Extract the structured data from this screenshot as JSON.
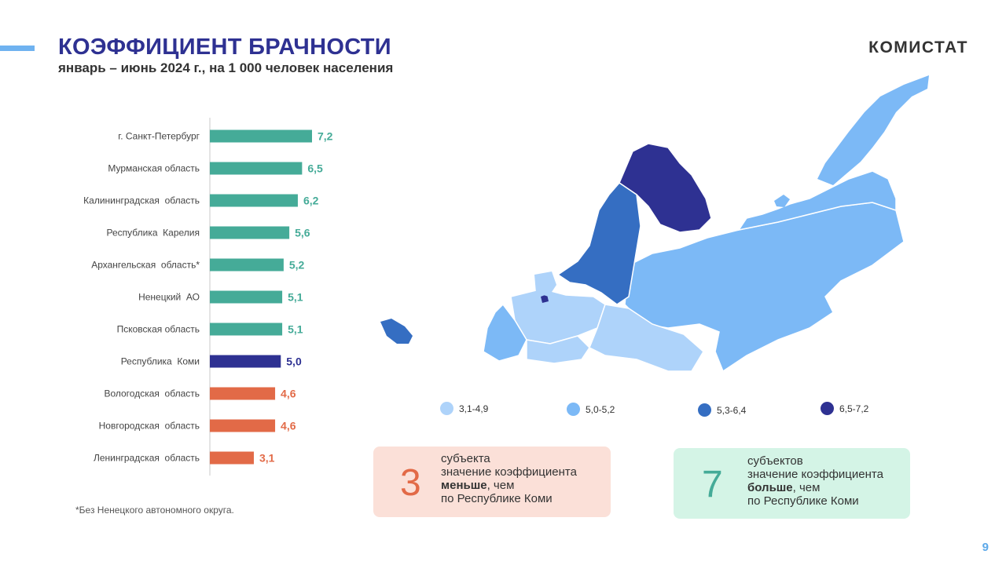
{
  "header": {
    "title": "КОЭФФИЦИЕНТ БРАЧНОСТИ",
    "subtitle": "январь – июнь 2024 г., на 1 000 человек населения",
    "brand": "КОМИСТАТ",
    "page_number": "9",
    "accent_color": "#6fb2f0",
    "title_color": "#2e3192"
  },
  "chart_data": {
    "type": "bar",
    "orientation": "horizontal",
    "categories": [
      "г. Санкт-Петербург",
      "Мурманская область",
      "Калининградская  область",
      "Республика  Карелия",
      "Архангельская  область*",
      "Ненецкий  АО",
      "Псковская область",
      "Республика  Коми",
      "Вологодская  область",
      "Новгородская  область",
      "Ленинградская  область"
    ],
    "values": [
      7.2,
      6.5,
      6.2,
      5.6,
      5.2,
      5.1,
      5.1,
      5.0,
      4.6,
      4.6,
      3.1
    ],
    "value_labels": [
      "7,2",
      "6,5",
      "6,2",
      "5,6",
      "5,2",
      "5,1",
      "5,1",
      "5,0",
      "4,6",
      "4,6",
      "3,1"
    ],
    "groups": [
      "higher",
      "higher",
      "higher",
      "higher",
      "higher",
      "higher",
      "higher",
      "komi",
      "lower",
      "lower",
      "lower"
    ],
    "colors": {
      "higher": "#45ab98",
      "komi": "#2e3192",
      "lower": "#e26a47"
    },
    "xlim": [
      0,
      7.2
    ]
  },
  "footnote": "*Без Ненецкого  автономного  округа.",
  "map": {
    "legend": [
      {
        "label": "3,1-4,9",
        "color": "#aed3fa"
      },
      {
        "label": "5,0-5,2",
        "color": "#7cb9f6"
      },
      {
        "label": "5,3-6,4",
        "color": "#356ec2"
      },
      {
        "label": "6,5-7,2",
        "color": "#2e3192"
      }
    ]
  },
  "info_boxes": {
    "less": {
      "number": "3",
      "line1": "субъекта",
      "line2": "значение  коэффициента",
      "bold": "меньше",
      "line3_rest": ", чем",
      "line4": "по Республике  Коми",
      "bg": "#fbe0d8",
      "number_color": "#e26a47"
    },
    "more": {
      "number": "7",
      "line1": "субъектов",
      "line2": "значение  коэффициента",
      "bold": "больше",
      "line3_rest": ", чем",
      "line4": "по Республике  Коми",
      "bg": "#d4f4e6",
      "number_color": "#45ab98"
    }
  }
}
